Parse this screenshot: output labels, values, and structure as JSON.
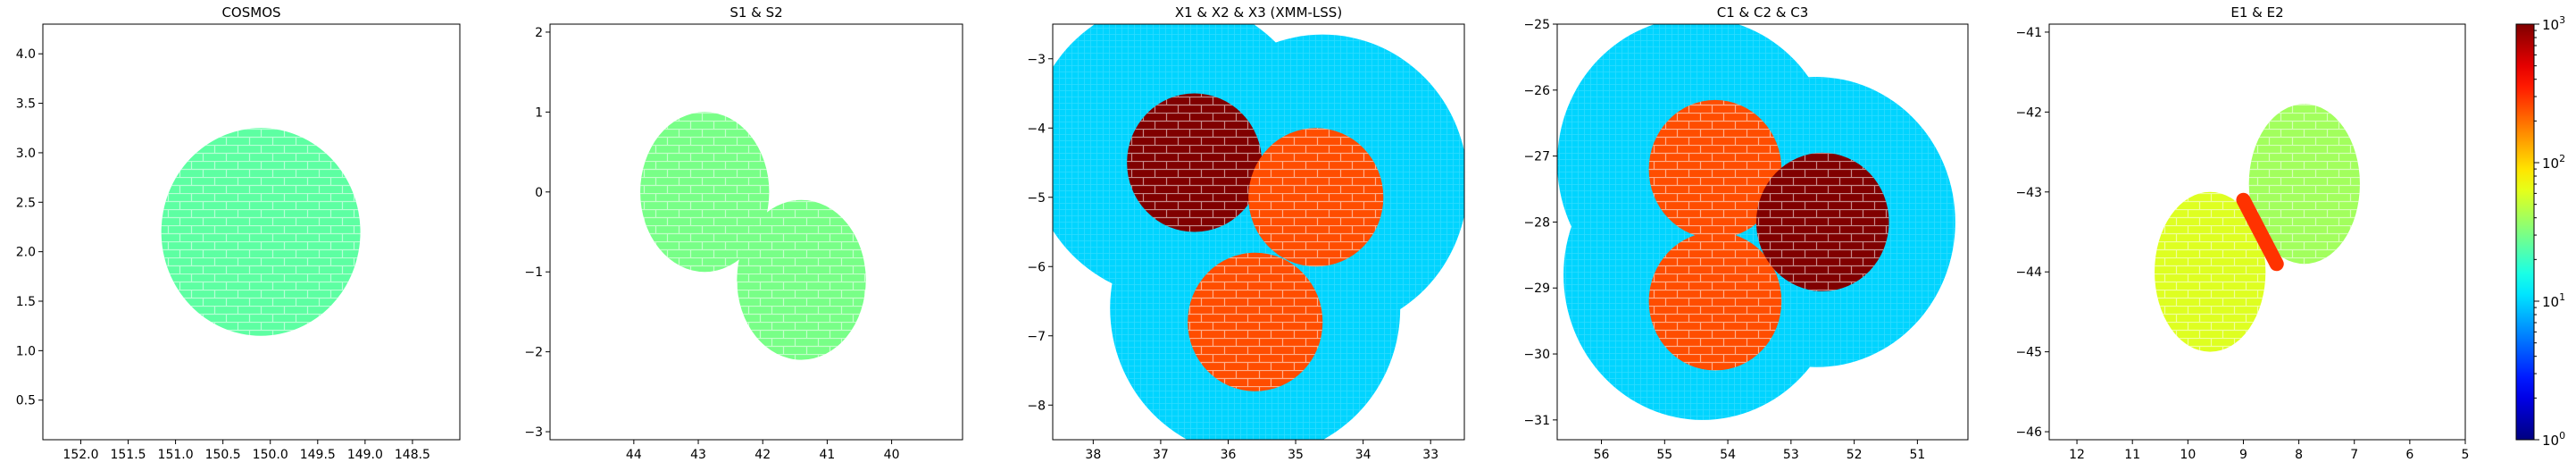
{
  "figure": {
    "colormap": "jet",
    "colorbar": {
      "scale": "log",
      "range": [
        1,
        1000
      ],
      "tick_labels": [
        {
          "base": "10",
          "exp": "0",
          "value": 1
        },
        {
          "base": "10",
          "exp": "1",
          "value": 10
        },
        {
          "base": "10",
          "exp": "2",
          "value": 100
        },
        {
          "base": "10",
          "exp": "3",
          "value": 1000
        }
      ]
    }
  },
  "chart_data": [
    {
      "type": "heatmap",
      "title": "COSMOS",
      "xlabel": "",
      "ylabel": "",
      "xlim": [
        152.4,
        148.0
      ],
      "ylim": [
        0.1,
        4.3
      ],
      "x_ticks": [
        152.0,
        151.5,
        151.0,
        150.5,
        150.0,
        149.5,
        149.0,
        148.5
      ],
      "x_tick_labels": [
        "152.0",
        "151.5",
        "151.0",
        "150.5",
        "150.0",
        "149.5",
        "149.0",
        "148.5"
      ],
      "y_ticks": [
        0.5,
        1.0,
        1.5,
        2.0,
        2.5,
        3.0,
        3.5,
        4.0
      ],
      "y_tick_labels": [
        "0.5",
        "1.0",
        "1.5",
        "2.0",
        "2.5",
        "3.0",
        "3.5",
        "4.0"
      ],
      "regions": [
        {
          "shape": "circle",
          "center": [
            150.1,
            2.2
          ],
          "radius": 1.05,
          "value": 25
        }
      ]
    },
    {
      "type": "heatmap",
      "title": "S1 & S2",
      "xlabel": "",
      "ylabel": "",
      "xlim": [
        45.3,
        38.9
      ],
      "ylim": [
        -3.1,
        2.1
      ],
      "x_ticks": [
        44,
        43,
        42,
        41,
        40
      ],
      "x_tick_labels": [
        "44",
        "43",
        "42",
        "41",
        "40"
      ],
      "y_ticks": [
        -3,
        -2,
        -1,
        0,
        1,
        2
      ],
      "y_tick_labels": [
        "−3",
        "−2",
        "−1",
        "0",
        "1",
        "2"
      ],
      "regions": [
        {
          "shape": "circle",
          "center": [
            42.9,
            0.0
          ],
          "radius": 1.0,
          "value": 30
        },
        {
          "shape": "circle",
          "center": [
            41.4,
            -1.1
          ],
          "radius": 1.0,
          "value": 30
        }
      ]
    },
    {
      "type": "heatmap",
      "title": "X1 & X2 & X3 (XMM-LSS)",
      "xlabel": "",
      "ylabel": "",
      "xlim": [
        38.6,
        32.5
      ],
      "ylim": [
        -8.5,
        -2.5
      ],
      "x_ticks": [
        38,
        37,
        36,
        35,
        34,
        33
      ],
      "x_tick_labels": [
        "38",
        "37",
        "36",
        "35",
        "34",
        "33"
      ],
      "y_ticks": [
        -8,
        -7,
        -6,
        -5,
        -4,
        -3
      ],
      "y_tick_labels": [
        "−8",
        "−7",
        "−6",
        "−5",
        "−4",
        "−3"
      ],
      "regions": [
        {
          "shape": "circle",
          "center": [
            36.8,
            -4.3
          ],
          "radius": 2.15,
          "value": 10
        },
        {
          "shape": "circle",
          "center": [
            34.6,
            -4.8
          ],
          "radius": 2.15,
          "value": 10
        },
        {
          "shape": "circle",
          "center": [
            35.6,
            -6.6
          ],
          "radius": 2.15,
          "value": 10
        },
        {
          "shape": "circle",
          "center": [
            36.5,
            -4.5
          ],
          "radius": 1.0,
          "value": 1000
        },
        {
          "shape": "circle",
          "center": [
            34.7,
            -5.0
          ],
          "radius": 1.0,
          "value": 250
        },
        {
          "shape": "circle",
          "center": [
            35.6,
            -6.8
          ],
          "radius": 1.0,
          "value": 250
        }
      ]
    },
    {
      "type": "heatmap",
      "title": "C1 & C2 & C3",
      "xlabel": "",
      "ylabel": "",
      "xlim": [
        56.7,
        50.2
      ],
      "ylim": [
        -31.3,
        -25.0
      ],
      "x_ticks": [
        56,
        55,
        54,
        53,
        52,
        51
      ],
      "x_tick_labels": [
        "56",
        "55",
        "54",
        "53",
        "52",
        "51"
      ],
      "y_ticks": [
        -31,
        -30,
        -29,
        -28,
        -27,
        -26,
        -25
      ],
      "y_tick_labels": [
        "−31",
        "−30",
        "−29",
        "−28",
        "−27",
        "−26",
        "−25"
      ],
      "regions": [
        {
          "shape": "circle",
          "center": [
            54.5,
            -27.1
          ],
          "radius": 2.2,
          "value": 10
        },
        {
          "shape": "circle",
          "center": [
            52.6,
            -28.0
          ],
          "radius": 2.2,
          "value": 10
        },
        {
          "shape": "circle",
          "center": [
            54.4,
            -28.8
          ],
          "radius": 2.2,
          "value": 10
        },
        {
          "shape": "circle",
          "center": [
            54.2,
            -27.2
          ],
          "radius": 1.05,
          "value": 250
        },
        {
          "shape": "circle",
          "center": [
            54.2,
            -29.2
          ],
          "radius": 1.05,
          "value": 250
        },
        {
          "shape": "circle",
          "center": [
            52.5,
            -28.0
          ],
          "radius": 1.05,
          "value": 1000
        }
      ]
    },
    {
      "type": "heatmap",
      "title": "E1 & E2",
      "xlabel": "",
      "ylabel": "",
      "xlim": [
        12.5,
        5.0
      ],
      "ylim": [
        -46.1,
        -40.9
      ],
      "x_ticks": [
        12,
        11,
        10,
        9,
        8,
        7,
        6,
        5
      ],
      "x_tick_labels": [
        "12",
        "11",
        "10",
        "9",
        "8",
        "7",
        "6",
        "5"
      ],
      "y_ticks": [
        -46,
        -45,
        -44,
        -43,
        -42,
        -41
      ],
      "y_tick_labels": [
        "−46",
        "−45",
        "−44",
        "−43",
        "−42",
        "−41"
      ],
      "regions": [
        {
          "shape": "circle",
          "center": [
            7.9,
            -42.9
          ],
          "radius": 1.0,
          "value": 40
        },
        {
          "shape": "circle",
          "center": [
            9.6,
            -44.0
          ],
          "radius": 1.0,
          "value": 60
        },
        {
          "shape": "band",
          "from": [
            9.0,
            -43.1
          ],
          "to": [
            8.4,
            -43.9
          ],
          "value": 300
        }
      ]
    }
  ]
}
